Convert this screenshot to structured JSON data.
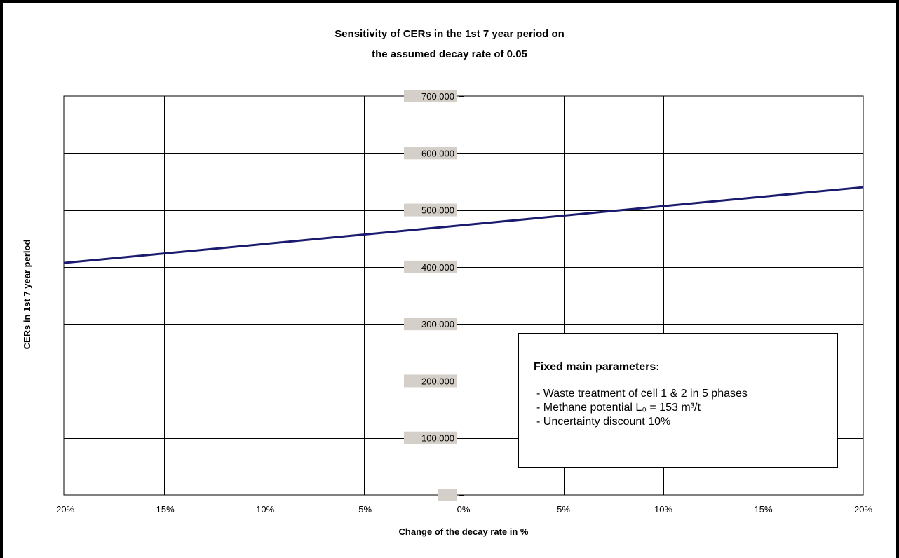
{
  "chart_data": {
    "type": "line",
    "title_lines": [
      "Sensitivity of CERs in the 1st 7 year period on",
      "the assumed decay rate of 0.05"
    ],
    "xlabel": "Change of the decay rate in %",
    "ylabel": "CERs in 1st 7 year period",
    "x_tick_labels": [
      "-20%",
      "-15%",
      "-10%",
      "-5%",
      "0%",
      "5%",
      "10%",
      "15%",
      "20%"
    ],
    "y_tick_labels": [
      "-",
      "100.000",
      "200.000",
      "300.000",
      "400.000",
      "500.000",
      "600.000",
      "700.000"
    ],
    "xlim": [
      -20,
      20
    ],
    "ylim": [
      0,
      700000
    ],
    "grid": true,
    "series": [
      {
        "color": "#1a1a6e",
        "x": [
          -20,
          20
        ],
        "y": [
          407000,
          540000
        ]
      }
    ],
    "annotation": {
      "heading": "Fixed main parameters:",
      "items": [
        "- Waste treatment of cell 1 & 2 in 5 phases",
        "- Methane potential L₀ = 153 m³/t",
        "- Uncertainty discount 10%"
      ]
    }
  }
}
